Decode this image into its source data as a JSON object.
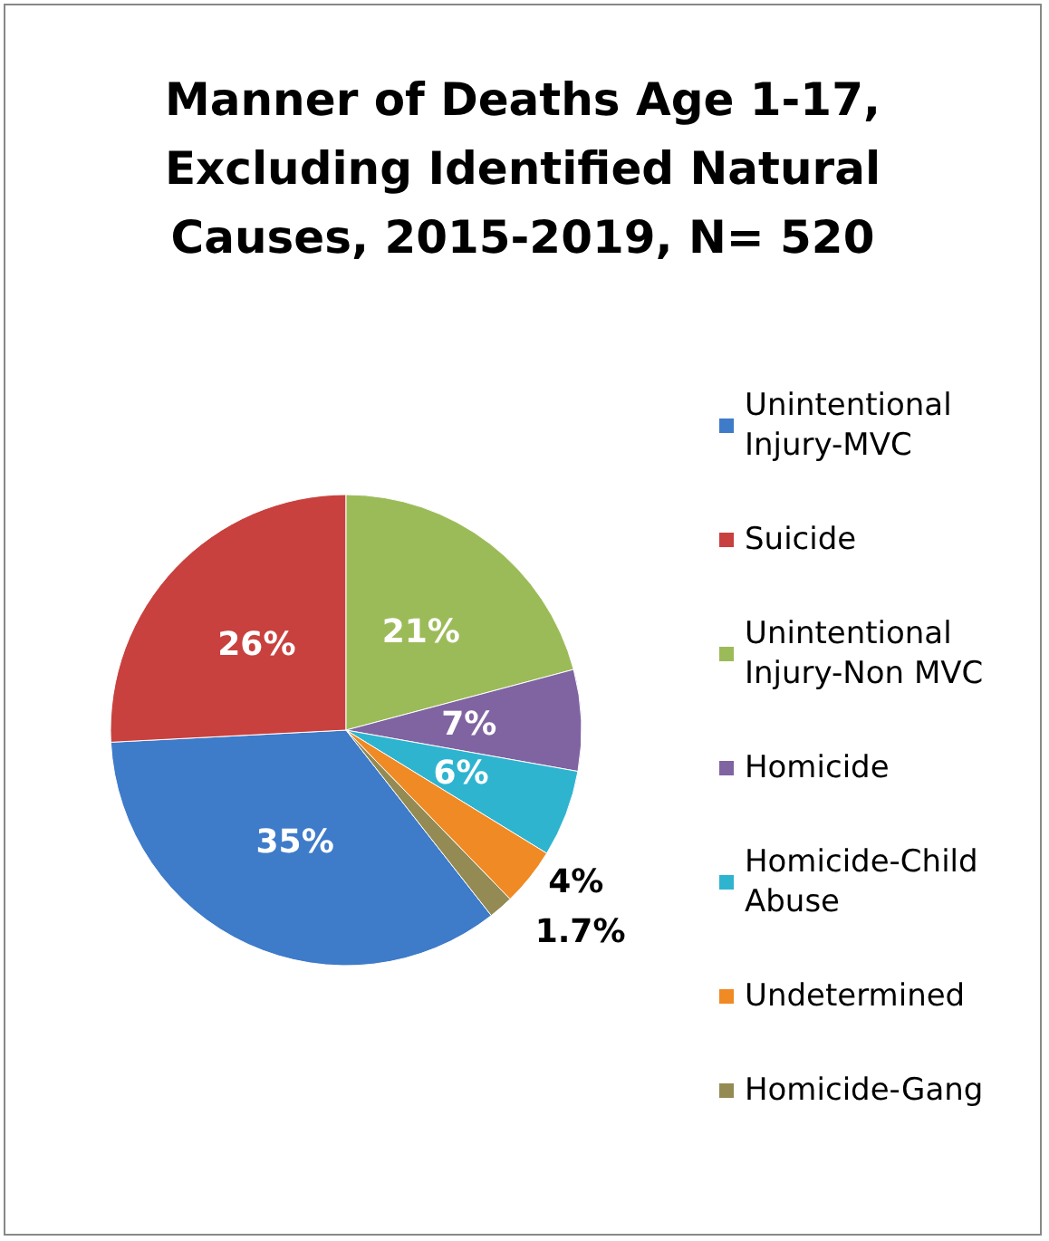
{
  "chart_data": {
    "type": "pie",
    "title": "Manner of Deaths Age 1-17,\nExcluding Identified Natural\nCauses, 2015-2019, N= 520",
    "categories": [
      "Unintentional Injury-MVC",
      "Suicide",
      "Unintentional Injury-Non MVC",
      "Homicide",
      "Homicide-Child Abuse",
      "Undetermined",
      "Homicide-Gang"
    ],
    "values": [
      35,
      26,
      21,
      7,
      6,
      4,
      1.7
    ],
    "value_labels": [
      "35%",
      "26%",
      "21%",
      "7%",
      "6%",
      "4%",
      "1.7%"
    ],
    "colors": [
      "#3e7bc9",
      "#c8413e",
      "#9bbb59",
      "#8064a2",
      "#2fb4d0",
      "#f08a24",
      "#948a54"
    ],
    "legend": "right"
  }
}
